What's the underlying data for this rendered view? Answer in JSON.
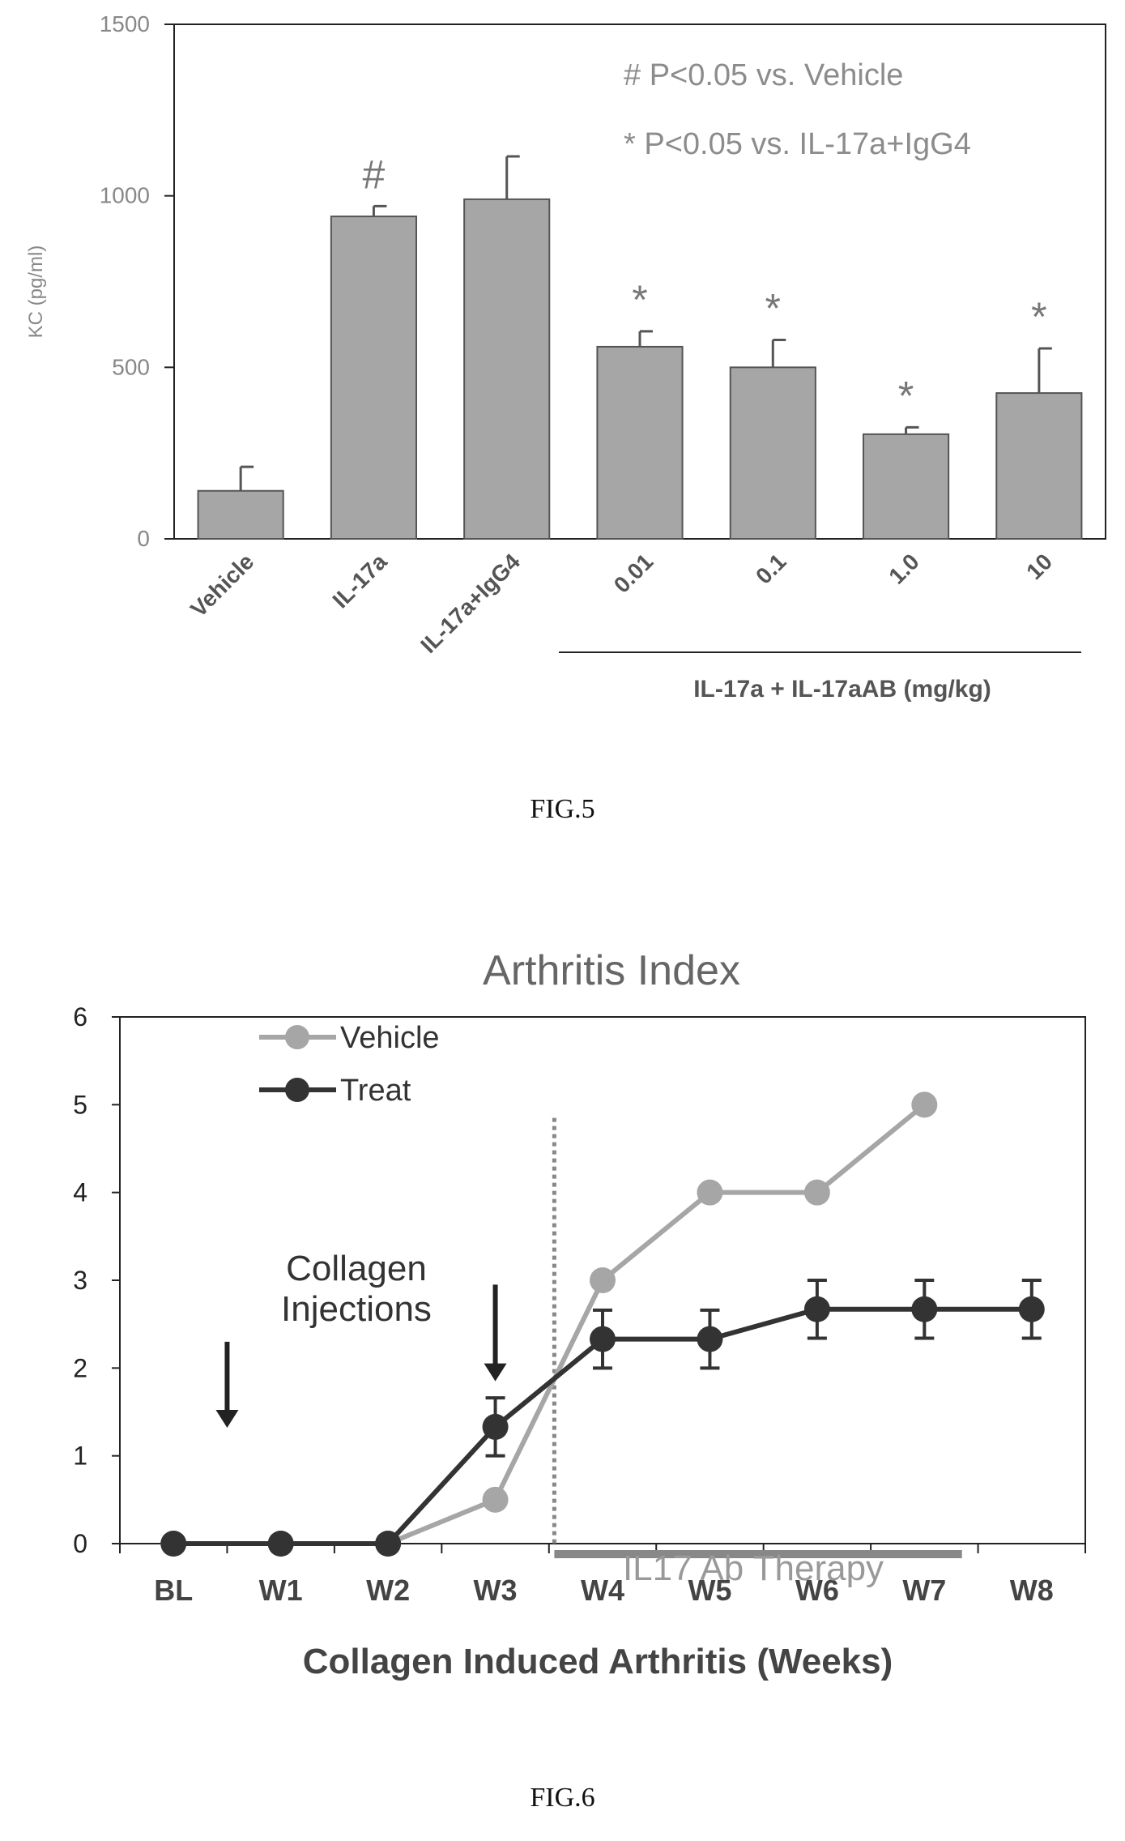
{
  "figures": [
    {
      "caption": "FIG.5"
    },
    {
      "caption": "FIG.6"
    }
  ],
  "chart_data": [
    {
      "type": "bar",
      "ylabel": "KC (pg/ml)",
      "ylim": [
        0,
        1500
      ],
      "yticks": [
        "0",
        "500",
        "1000",
        "1500"
      ],
      "categories": [
        "Vehicle",
        "IL-17a",
        "IL-17a+IgG4",
        "0.01",
        "0.1",
        "1.0",
        "10"
      ],
      "values": [
        140,
        940,
        990,
        560,
        500,
        305,
        425
      ],
      "errors": [
        70,
        30,
        125,
        45,
        80,
        20,
        130
      ],
      "markers": [
        "",
        "#",
        "",
        "*",
        "*",
        "*",
        "*"
      ],
      "group_label": "IL-17a + IL-17aAB (mg/kg)",
      "legend": [
        "# P<0.05 vs. Vehicle",
        "* P<0.05 vs. IL-17a+IgG4"
      ],
      "legend_position": "top-right",
      "bar_color": "#a6a6a6",
      "grid": false
    },
    {
      "type": "line",
      "title": "Arthritis Index",
      "xlabel": "Collagen Induced Arthritis (Weeks)",
      "ylim": [
        0,
        6
      ],
      "yticks": [
        "0",
        "1",
        "2",
        "3",
        "4",
        "5",
        "6"
      ],
      "categories": [
        "BL",
        "W1",
        "W2",
        "W3",
        "W4",
        "W5",
        "W6",
        "W7",
        "W8"
      ],
      "series": [
        {
          "name": "Vehicle",
          "color": "#a6a6a6",
          "values": [
            0,
            0,
            0,
            0.5,
            3,
            4,
            4,
            5,
            null
          ]
        },
        {
          "name": "Treat",
          "color": "#333333",
          "values": [
            0,
            0,
            0,
            1.33,
            2.33,
            2.33,
            2.67,
            2.67,
            2.67
          ],
          "errors": [
            0,
            0,
            0,
            0.33,
            0.33,
            0.33,
            0.33,
            0.33,
            0.33
          ]
        }
      ],
      "legend_position": "top-left",
      "annotations": [
        {
          "text": "Collagen Injections",
          "lines": [
            "Collagen",
            "Injections"
          ]
        },
        {
          "text": "IL17 Ab Therapy"
        }
      ],
      "injection_weeks": [
        0.5,
        3
      ],
      "therapy_start_week": 3.55,
      "therapy_end_week": 7.35,
      "grid": false
    }
  ]
}
